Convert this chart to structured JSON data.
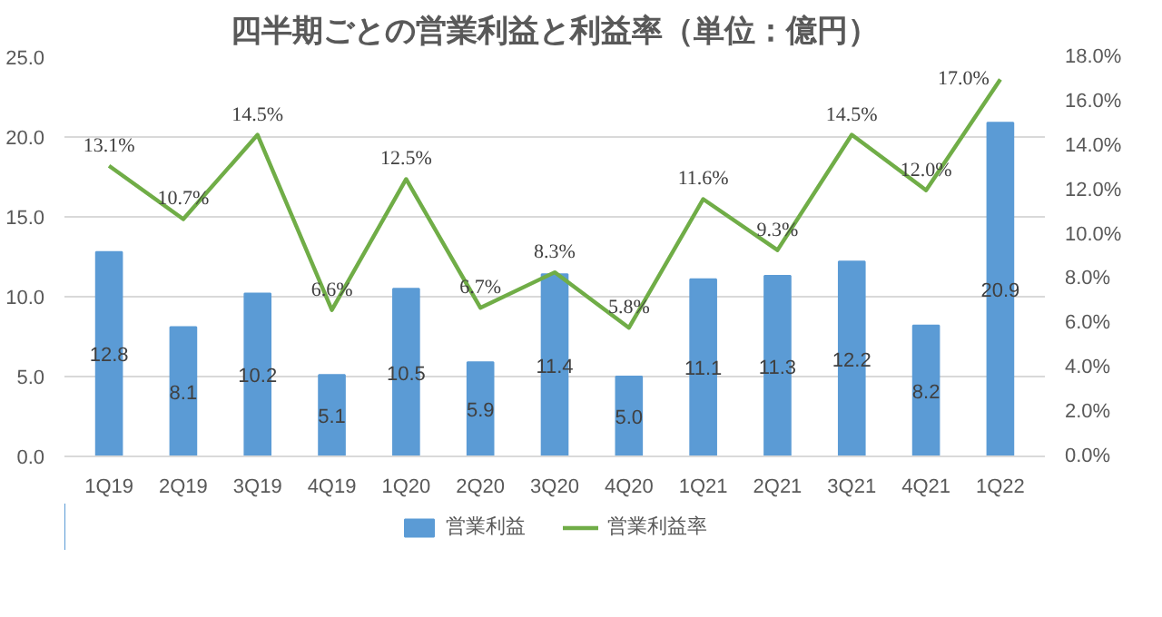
{
  "chart_data": {
    "type": "bar",
    "title": "四半期ごとの営業利益と利益率（単位：億円）",
    "categories": [
      "1Q19",
      "2Q19",
      "3Q19",
      "4Q19",
      "1Q20",
      "2Q20",
      "3Q20",
      "4Q20",
      "1Q21",
      "2Q21",
      "3Q21",
      "4Q21",
      "1Q22"
    ],
    "series": [
      {
        "name": "営業利益",
        "type": "bar",
        "color": "#5b9bd5",
        "values": [
          12.8,
          8.1,
          10.2,
          5.1,
          10.5,
          5.9,
          11.4,
          5.0,
          11.1,
          11.3,
          12.2,
          8.2,
          20.9
        ],
        "value_labels": [
          "12.8",
          "8.1",
          "10.2",
          "5.1",
          "10.5",
          "5.9",
          "11.4",
          "5.0",
          "11.1",
          "11.3",
          "12.2",
          "8.2",
          "20.9"
        ]
      },
      {
        "name": "営業利益率",
        "type": "line",
        "axis": "y2",
        "color": "#70ad47",
        "values": [
          13.1,
          10.7,
          14.5,
          6.6,
          12.5,
          6.7,
          8.3,
          5.8,
          11.6,
          9.3,
          14.5,
          12.0,
          17.0
        ],
        "value_labels": [
          "13.1%",
          "10.7%",
          "14.5%",
          "6.6%",
          "12.5%",
          "6.7%",
          "8.3%",
          "5.8%",
          "11.6%",
          "9.3%",
          "14.5%",
          "12.0%",
          "17.0%"
        ]
      }
    ],
    "ylim": [
      0,
      25
    ],
    "yticks": [
      {
        "value": 0,
        "label": "0.0"
      },
      {
        "value": 5,
        "label": "5.0"
      },
      {
        "value": 10,
        "label": "10.0"
      },
      {
        "value": 15,
        "label": "15.0"
      },
      {
        "value": 20,
        "label": "20.0"
      },
      {
        "value": 25,
        "label": "25.0"
      }
    ],
    "y2lim": [
      0,
      18
    ],
    "y2ticks": [
      {
        "value": 0,
        "label": "0.0%"
      },
      {
        "value": 2,
        "label": "2.0%"
      },
      {
        "value": 4,
        "label": "4.0%"
      },
      {
        "value": 6,
        "label": "6.0%"
      },
      {
        "value": 8,
        "label": "8.0%"
      },
      {
        "value": 10,
        "label": "10.0%"
      },
      {
        "value": 12,
        "label": "12.0%"
      },
      {
        "value": 14,
        "label": "14.0%"
      },
      {
        "value": 16,
        "label": "16.0%"
      },
      {
        "value": 18,
        "label": "18.0%"
      }
    ],
    "grid": "y",
    "legend": "bottom",
    "marker": "none",
    "line_style": "solid"
  }
}
